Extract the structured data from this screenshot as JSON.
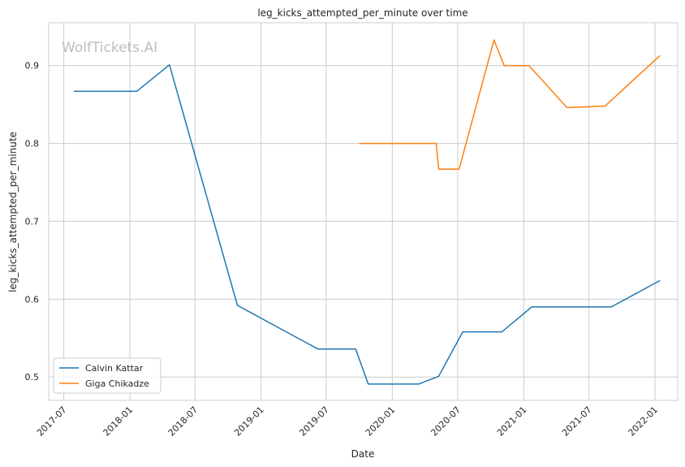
{
  "chart_data": {
    "type": "line",
    "title": "leg_kicks_attempted_per_minute over time",
    "xlabel": "Date",
    "ylabel": "leg_kicks_attempted_per_minute",
    "watermark": "WolfTickets.AI",
    "x_ticks": [
      "2017-07",
      "2018-01",
      "2018-07",
      "2019-01",
      "2019-07",
      "2020-01",
      "2020-07",
      "2021-01",
      "2021-07",
      "2022-01"
    ],
    "y_ticks": [
      0.5,
      0.6,
      0.7,
      0.8,
      0.9
    ],
    "xlim": [
      "2017-05-20",
      "2022-03-05"
    ],
    "ylim": [
      0.47,
      0.955
    ],
    "grid": true,
    "legend": "lower-left",
    "series": [
      {
        "name": "Calvin Kattar",
        "color": "#1f77b4",
        "x": [
          "2017-07-29",
          "2018-01-20",
          "2018-04-21",
          "2018-10-27",
          "2019-06-08",
          "2019-09-21",
          "2019-10-26",
          "2020-03-14",
          "2020-05-09",
          "2020-07-15",
          "2020-11-01",
          "2021-01-23",
          "2021-09-01",
          "2022-01-15"
        ],
        "values": [
          0.867,
          0.867,
          0.901,
          0.592,
          0.536,
          0.536,
          0.491,
          0.491,
          0.501,
          0.558,
          0.558,
          0.59,
          0.59,
          0.624
        ]
      },
      {
        "name": "Giga Chikadze",
        "color": "#ff7f0e",
        "x": [
          "2019-10-01",
          "2020-05-02",
          "2020-05-09",
          "2020-07-05",
          "2020-10-10",
          "2020-11-07",
          "2021-01-15",
          "2021-05-01",
          "2021-08-15",
          "2022-01-15"
        ],
        "values": [
          0.8,
          0.8,
          0.767,
          0.767,
          0.933,
          0.9,
          0.9,
          0.846,
          0.848,
          0.913
        ]
      }
    ]
  }
}
